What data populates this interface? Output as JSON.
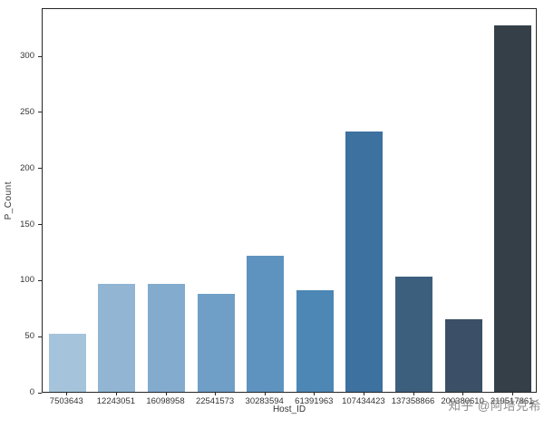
{
  "figure": {
    "watermark": "知乎 @阿培克希",
    "background": "#ffffff",
    "spine_color": "#262626",
    "tick_text_color": "#333333"
  },
  "chart_data": {
    "type": "bar",
    "title": "",
    "xlabel": "Host_ID",
    "ylabel": "P_Count",
    "categories": [
      "7503643",
      "12243051",
      "16098958",
      "22541573",
      "30283594",
      "61391963",
      "107434423",
      "137358866",
      "200380610",
      "219517861"
    ],
    "values": [
      52,
      96,
      96,
      87,
      121,
      91,
      232,
      103,
      65,
      327
    ],
    "bar_colors": [
      "#a5c4dc",
      "#91b5d3",
      "#82abce",
      "#6f9ec6",
      "#5e93bf",
      "#4d87b5",
      "#3d719f",
      "#3d5f7e",
      "#3b5066",
      "#343f48"
    ],
    "yticks": [
      0,
      50,
      100,
      150,
      200,
      250,
      300
    ],
    "ylim": [
      0,
      343
    ],
    "grid": false,
    "legend": null,
    "bar_width_ratio": 0.75
  }
}
